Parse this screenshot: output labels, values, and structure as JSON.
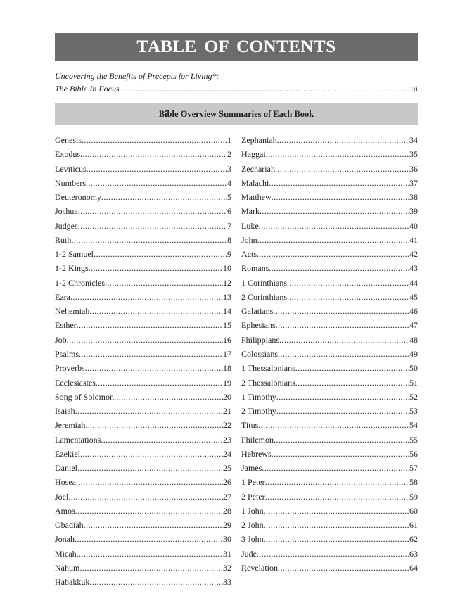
{
  "title": "TABLE OF CONTENTS",
  "intro": {
    "line1": "Uncovering the Benefits of Precepts for Living*:",
    "line2": "The Bible In Focus",
    "page": "iii"
  },
  "section_heading": "Bible Overview Summaries of Each Book",
  "left_entries": [
    {
      "title": "Genesis",
      "page": "1"
    },
    {
      "title": "Exodus",
      "page": "2"
    },
    {
      "title": "Leviticus",
      "page": "3"
    },
    {
      "title": "Numbers",
      "page": "4"
    },
    {
      "title": "Deuteronomy",
      "page": "5"
    },
    {
      "title": "Joshua",
      "page": "6"
    },
    {
      "title": "Judges",
      "page": "7"
    },
    {
      "title": "Ruth",
      "page": "8"
    },
    {
      "title": "1-2 Samuel",
      "page": "9"
    },
    {
      "title": "1-2 Kings",
      "page": "10"
    },
    {
      "title": "1-2 Chronicles",
      "page": "12"
    },
    {
      "title": "Ezra",
      "page": "13"
    },
    {
      "title": "Nehemiah",
      "page": "14"
    },
    {
      "title": "Esther",
      "page": "15"
    },
    {
      "title": "Job",
      "page": "16"
    },
    {
      "title": "Psalms",
      "page": "17"
    },
    {
      "title": "Proverbs",
      "page": "18"
    },
    {
      "title": "Ecclesiastes",
      "page": "19"
    },
    {
      "title": "Song of Solomon",
      "page": "20"
    },
    {
      "title": "Isaiah",
      "page": "21"
    },
    {
      "title": "Jeremiah",
      "page": "22"
    },
    {
      "title": "Lamentations",
      "page": "23"
    },
    {
      "title": "Ezekiel",
      "page": "24"
    },
    {
      "title": "Daniel",
      "page": "25"
    },
    {
      "title": "Hosea",
      "page": "26"
    },
    {
      "title": "Joel",
      "page": "27"
    },
    {
      "title": "Amos",
      "page": "28"
    },
    {
      "title": "Obadiah",
      "page": "29"
    },
    {
      "title": "Jonah",
      "page": "30"
    },
    {
      "title": "Micah",
      "page": "31"
    },
    {
      "title": "Nahum",
      "page": "32"
    },
    {
      "title": "Habakkuk",
      "page": "33"
    }
  ],
  "right_entries": [
    {
      "title": "Zephaniah",
      "page": "34"
    },
    {
      "title": "Haggai",
      "page": "35"
    },
    {
      "title": "Zechariah",
      "page": "36"
    },
    {
      "title": "Malachi",
      "page": "37"
    },
    {
      "title": "Matthew",
      "page": "38"
    },
    {
      "title": "Mark",
      "page": "39"
    },
    {
      "title": "Luke",
      "page": "40"
    },
    {
      "title": "John",
      "page": "41"
    },
    {
      "title": "Acts",
      "page": "42"
    },
    {
      "title": "Romans",
      "page": "43"
    },
    {
      "title": "1 Corinthians",
      "page": "44"
    },
    {
      "title": "2 Corinthians",
      "page": "45"
    },
    {
      "title": "Galatians",
      "page": "46"
    },
    {
      "title": "Ephesians",
      "page": "47"
    },
    {
      "title": "Philippians",
      "page": "48"
    },
    {
      "title": "Colossians",
      "page": "49"
    },
    {
      "title": "1 Thessalonians",
      "page": "50"
    },
    {
      "title": "2 Thessalonians",
      "page": "51"
    },
    {
      "title": "1 Timothy",
      "page": "52"
    },
    {
      "title": "2 Timothy",
      "page": "53"
    },
    {
      "title": "Titus",
      "page": "54"
    },
    {
      "title": "Philemon",
      "page": "55"
    },
    {
      "title": "Hebrews",
      "page": "56"
    },
    {
      "title": "James",
      "page": "57"
    },
    {
      "title": "1 Peter",
      "page": "58"
    },
    {
      "title": "2 Peter",
      "page": "59"
    },
    {
      "title": "1 John",
      "page": "60"
    },
    {
      "title": "2 John",
      "page": "61"
    },
    {
      "title": "3 John",
      "page": "62"
    },
    {
      "title": "Jude",
      "page": "63"
    },
    {
      "title": "Revelation",
      "page": "64"
    }
  ],
  "colors": {
    "title_bar": "#6b6b6b",
    "section_bar": "#c8c8c8"
  }
}
